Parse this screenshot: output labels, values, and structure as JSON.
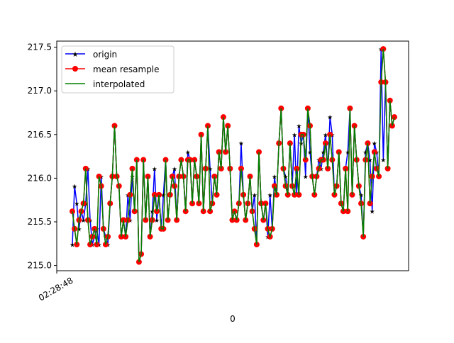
{
  "chart_data": {
    "type": "line",
    "title": "",
    "xlabel": "0",
    "ylabel": "",
    "x_tick_labels": [
      "02:28:48"
    ],
    "y_ticks": [
      215.0,
      215.5,
      216.0,
      216.5,
      217.0,
      217.5
    ],
    "y_tick_labels": [
      "215.0",
      "215.5",
      "216.0",
      "216.5",
      "217.0",
      "217.5"
    ],
    "ylim": [
      214.94,
      217.57
    ],
    "grid": false,
    "legend_position": "upper-left",
    "series": [
      {
        "name": "origin",
        "color": "#0000ff",
        "marker": "star",
        "values": [
          215.24,
          215.91,
          215.71,
          215.42,
          215.62,
          215.52,
          215.71,
          216.11,
          215.52,
          215.24,
          215.33,
          215.42,
          215.24,
          216.02,
          215.42,
          215.33,
          215.24,
          215.71,
          216.02,
          216.6,
          216.02,
          215.91,
          215.33,
          215.52,
          215.33,
          215.81,
          215.52,
          216.02,
          215.62,
          216.21,
          215.04,
          215.13,
          216.21,
          215.52,
          216.02,
          215.33,
          215.62,
          216.11,
          215.52,
          215.81,
          215.42,
          215.81,
          216.21,
          215.52,
          215.81,
          216.02,
          216.11,
          215.52,
          216.02,
          216.21,
          216.02,
          215.62,
          216.3,
          216.21,
          215.71,
          216.21,
          216.02,
          215.71,
          216.5,
          215.62,
          216.11,
          216.6,
          216.11,
          215.71,
          216.02,
          215.81,
          216.3,
          216.11,
          216.7,
          216.3,
          216.6,
          216.11,
          215.52,
          215.62,
          215.52,
          215.71,
          216.4,
          215.81,
          215.52,
          215.71,
          216.02,
          215.62,
          215.81,
          215.24,
          216.3,
          215.71,
          215.52,
          215.71,
          215.33,
          215.81,
          215.42,
          216.02,
          215.81,
          216.4,
          216.8,
          216.11,
          216.02,
          215.81,
          216.4,
          215.91,
          216.5,
          215.81,
          216.6,
          216.4,
          216.5,
          216.02,
          216.8,
          216.3,
          216.02,
          215.81,
          216.02,
          216.21,
          216.11,
          216.3,
          216.5,
          216.11,
          216.7,
          216.5,
          215.81,
          215.91,
          216.3,
          215.71,
          215.62,
          216.11,
          216.3,
          216.8,
          215.81,
          216.6,
          216.21,
          215.91,
          215.81,
          215.33,
          216.3,
          216.4,
          216.21,
          215.62,
          216.4,
          216.3,
          216.02,
          217.48,
          216.21,
          217.1,
          216.11,
          216.89,
          216.6,
          216.7
        ],
        "y_hidden_note": ""
      },
      {
        "name": "mean resample",
        "color": "#ff0000",
        "marker": "circle",
        "values": [
          215.62,
          215.42,
          215.24,
          215.52,
          215.62,
          215.71,
          216.11,
          215.52,
          215.24,
          215.33,
          215.42,
          215.24,
          216.02,
          215.91,
          215.42,
          215.24,
          215.33,
          215.71,
          216.02,
          216.6,
          216.02,
          215.91,
          215.33,
          215.52,
          215.33,
          215.52,
          215.81,
          216.11,
          215.62,
          216.21,
          215.04,
          215.13,
          216.21,
          215.52,
          216.02,
          215.33,
          215.52,
          215.81,
          215.62,
          215.81,
          215.42,
          215.42,
          216.21,
          215.52,
          215.81,
          216.02,
          215.91,
          215.52,
          216.02,
          216.21,
          216.02,
          215.62,
          216.21,
          216.21,
          215.71,
          216.21,
          216.02,
          215.71,
          216.5,
          215.62,
          216.11,
          216.6,
          215.62,
          215.71,
          216.02,
          215.81,
          216.3,
          216.11,
          216.7,
          216.3,
          216.6,
          216.11,
          215.52,
          215.62,
          215.52,
          215.71,
          216.11,
          215.81,
          215.52,
          215.71,
          216.02,
          215.62,
          215.42,
          215.24,
          216.3,
          215.71,
          215.52,
          215.71,
          215.42,
          215.33,
          215.42,
          215.91,
          215.81,
          216.4,
          216.8,
          216.11,
          215.91,
          215.81,
          216.4,
          215.91,
          215.81,
          216.11,
          215.81,
          216.5,
          216.5,
          216.21,
          216.8,
          216.6,
          216.02,
          215.81,
          216.02,
          216.11,
          216.21,
          216.21,
          216.4,
          216.11,
          216.5,
          216.21,
          215.81,
          215.91,
          216.3,
          215.71,
          215.62,
          216.11,
          215.62,
          216.8,
          215.81,
          216.6,
          216.21,
          215.91,
          215.71,
          215.33,
          216.21,
          216.4,
          215.71,
          216.02,
          216.3,
          216.11,
          216.02,
          217.1,
          217.48,
          217.1,
          216.11,
          216.89,
          216.6,
          216.7
        ]
      },
      {
        "name": "interpolated",
        "color": "#008000",
        "marker": "none",
        "follows": "mean resample"
      }
    ]
  }
}
